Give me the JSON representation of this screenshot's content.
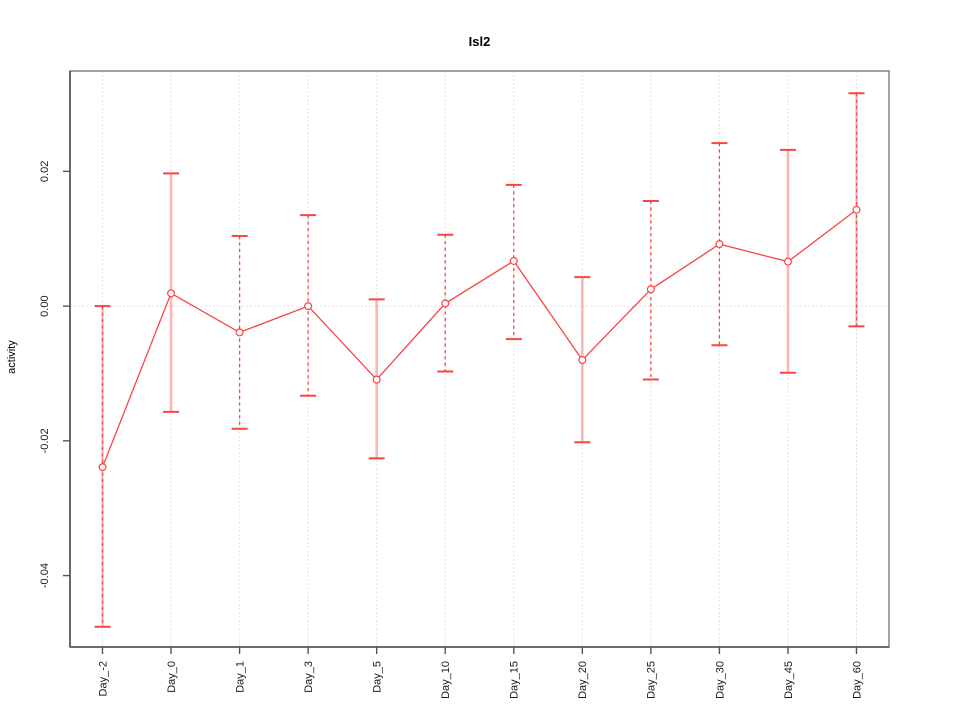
{
  "chart_data": {
    "type": "line",
    "title": "Isl2",
    "ylabel": "activity",
    "xlabel": "",
    "categories": [
      "Day_-2",
      "Day_0",
      "Day_1",
      "Day_3",
      "Day_5",
      "Day_10",
      "Day_15",
      "Day_20",
      "Day_25",
      "Day_30",
      "Day_45",
      "Day_60"
    ],
    "series": [
      {
        "name": "activity",
        "values": [
          -0.0239,
          0.0019,
          -0.0039,
          0.0,
          -0.0109,
          0.0004,
          0.0067,
          -0.008,
          0.0025,
          0.0092,
          0.0066,
          0.0143
        ],
        "upper": [
          0.0,
          0.0197,
          0.0104,
          0.0135,
          0.001,
          0.0106,
          0.018,
          0.0043,
          0.0156,
          0.0242,
          0.0232,
          0.0316
        ],
        "lower": [
          -0.0476,
          -0.0157,
          -0.0182,
          -0.0133,
          -0.0226,
          -0.0097,
          -0.0049,
          -0.0202,
          -0.0109,
          -0.0058,
          -0.0099,
          -0.003
        ],
        "stem_styles": [
          "pink-dash",
          "pink",
          "dash",
          "dash",
          "pink",
          "dash",
          "dash",
          "pink",
          "dash",
          "dash",
          "pink",
          "pink-dash"
        ]
      }
    ],
    "ylim": [
      -0.0506,
      0.0349
    ],
    "y_ticks": [
      0.02,
      0.0,
      -0.02,
      -0.04
    ],
    "y_tick_labels": [
      "0.02",
      "0.00",
      "-0.02",
      "-0.04"
    ],
    "zero_line": 0.0,
    "grid": "vertical-dotted-per-category",
    "legend": "none",
    "colors": {
      "series_red": "#f84545",
      "stem_pink": "#ffb5b5",
      "grid_gray": "#d8d8d8",
      "box_gray": "#8a8a8a",
      "axis_gray": "#555555",
      "tick_text": "#1a1a1a",
      "background": "#ffffff"
    }
  }
}
